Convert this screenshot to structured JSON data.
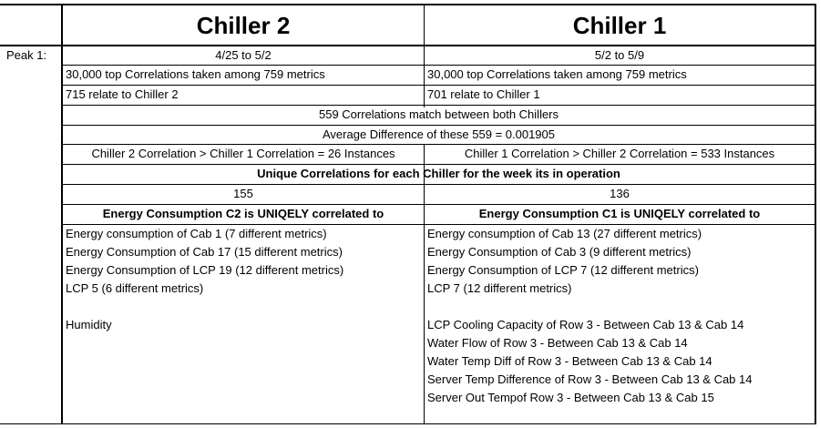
{
  "header": {
    "col_c2": "Chiller 2",
    "col_c1": "Chiller 1"
  },
  "row_label": "Peak 1:",
  "c2": {
    "dates": "4/25 to 5/2",
    "top_corr": "30,000 top Correlations taken among 759 metrics",
    "relate": "715 relate to Chiller 2"
  },
  "c1": {
    "dates": "5/2 to 5/9",
    "top_corr": "30,000 top Correlations taken among 759 metrics",
    "relate": "701 relate to Chiller 1"
  },
  "shared": {
    "match": "559 Correlations match between both Chillers",
    "avg_diff": "Average Difference of these 559 = 0.001905"
  },
  "compare": {
    "c2_gt_c1": "Chiller 2 Correlation > Chiller 1 Correlation = 26 Instances",
    "c1_gt_c2": "Chiller 1 Correlation > Chiller 2 Correlation = 533 Instances"
  },
  "unique_header": "Unique Correlations for each Chiller for the week its in operation",
  "unique_counts": {
    "c2": "155",
    "c1": "136"
  },
  "energy_headers": {
    "c2": "Energy Consumption C2 is UNIQELY correlated to",
    "c1": "Energy Consumption C1 is UNIQELY correlated to"
  },
  "c2_list": [
    "Energy consumption of Cab 1 (7 different metrics)",
    "Energy Consumption of Cab 17 (15 different metrics)",
    "Energy Consumption of LCP 19 (12 different metrics)",
    "LCP 5 (6 different metrics)",
    "",
    "Humidity"
  ],
  "c1_list": [
    "Energy consumption of Cab 13 (27 different metrics)",
    "Energy Consumption of Cab 3 (9 different metrics)",
    "Energy Consumption of LCP 7 (12 different metrics)",
    "LCP 7 (12 different metrics)",
    "",
    "LCP Cooling Capacity of Row 3 - Between Cab 13 & Cab 14",
    "Water Flow of Row 3 - Between Cab 13 & Cab 14",
    "Water Temp Diff of Row 3 - Between Cab 13 & Cab 14",
    "Server Temp Difference of Row 3 - Between Cab 13 & Cab 14",
    "Server Out Tempof Row 3 - Between Cab 13 & Cab 15"
  ]
}
